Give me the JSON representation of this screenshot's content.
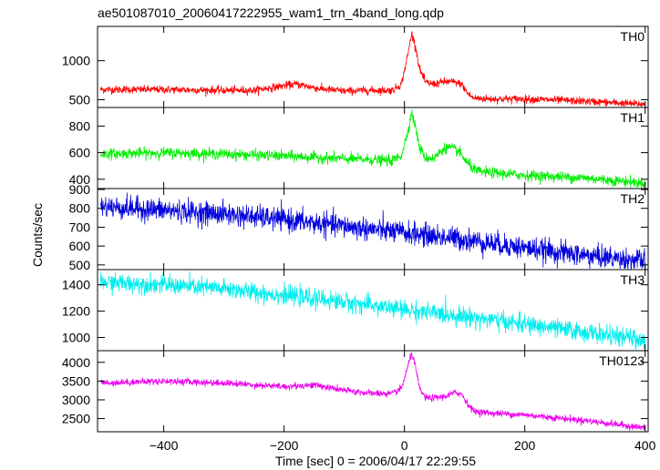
{
  "chart_data": {
    "type": "line",
    "title": "ae501087010_20060417222955_wam1_trn_4band_long.qdp",
    "xlabel": "Time [sec] 0 = 2006/04/17 22:29:55",
    "ylabel": "Counts/sec",
    "xlim": [
      -510,
      405
    ],
    "x_ticks": [
      -400,
      -200,
      0,
      200,
      400
    ],
    "x_tick_labels": [
      "−400",
      "−200",
      "0",
      "200",
      "400"
    ],
    "grid": false,
    "panels": [
      {
        "name": "TH0",
        "color": "#ff0000",
        "ylim": [
          400,
          1440
        ],
        "y_ticks": [
          500,
          1000
        ],
        "y_tick_labels": [
          "500",
          "1000"
        ],
        "noise": 25,
        "x": [
          -505,
          -400,
          -300,
          -250,
          -200,
          -180,
          -140,
          -100,
          -60,
          -20,
          -5,
          5,
          12,
          18,
          25,
          35,
          50,
          65,
          80,
          95,
          105,
          115,
          140,
          200,
          300,
          400
        ],
        "y": [
          630,
          630,
          620,
          620,
          680,
          700,
          640,
          610,
          620,
          620,
          700,
          1050,
          1350,
          1200,
          900,
          720,
          700,
          730,
          730,
          700,
          580,
          520,
          510,
          510,
          480,
          440
        ]
      },
      {
        "name": "TH1",
        "color": "#00ee00",
        "ylim": [
          330,
          940
        ],
        "y_ticks": [
          400,
          600,
          800
        ],
        "y_tick_labels": [
          "400",
          "600",
          "800"
        ],
        "noise": 20,
        "x": [
          -505,
          -400,
          -300,
          -200,
          -100,
          -20,
          -5,
          5,
          12,
          18,
          25,
          35,
          50,
          65,
          75,
          90,
          105,
          120,
          140,
          200,
          300,
          400
        ],
        "y": [
          590,
          600,
          590,
          575,
          555,
          540,
          580,
          750,
          900,
          800,
          640,
          560,
          560,
          630,
          640,
          610,
          520,
          460,
          450,
          430,
          410,
          370
        ]
      },
      {
        "name": "TH2",
        "color": "#0000dd",
        "ylim": [
          475,
          905
        ],
        "y_ticks": [
          500,
          600,
          700,
          800,
          900
        ],
        "y_tick_labels": [
          "500",
          "600",
          "700",
          "800",
          "900"
        ],
        "noise": 30,
        "x": [
          -505,
          -400,
          -300,
          -200,
          -100,
          0,
          100,
          200,
          300,
          400
        ],
        "y": [
          810,
          790,
          770,
          740,
          705,
          670,
          635,
          590,
          550,
          520
        ]
      },
      {
        "name": "TH3",
        "color": "#00eeee",
        "ylim": [
          900,
          1515
        ],
        "y_ticks": [
          1000,
          1200,
          1400
        ],
        "y_tick_labels": [
          "1000",
          "1200",
          "1400"
        ],
        "noise": 35,
        "x": [
          -505,
          -400,
          -300,
          -200,
          -100,
          0,
          100,
          200,
          300,
          400
        ],
        "y": [
          1420,
          1400,
          1370,
          1320,
          1270,
          1210,
          1160,
          1100,
          1040,
          980
        ]
      },
      {
        "name": "TH0123",
        "color": "#ee00ee",
        "ylim": [
          2150,
          4310
        ],
        "y_ticks": [
          2500,
          3000,
          3500,
          4000
        ],
        "y_tick_labels": [
          "2500",
          "3000",
          "3500",
          "4000"
        ],
        "noise": 45,
        "x": [
          -505,
          -400,
          -300,
          -200,
          -150,
          -100,
          -60,
          -20,
          -5,
          5,
          12,
          18,
          25,
          35,
          50,
          70,
          85,
          95,
          105,
          115,
          140,
          200,
          300,
          400
        ],
        "y": [
          3450,
          3500,
          3450,
          3350,
          3400,
          3250,
          3180,
          3160,
          3300,
          3850,
          4250,
          3900,
          3300,
          3050,
          3050,
          3100,
          3200,
          3150,
          2900,
          2700,
          2650,
          2600,
          2450,
          2250
        ]
      }
    ]
  }
}
